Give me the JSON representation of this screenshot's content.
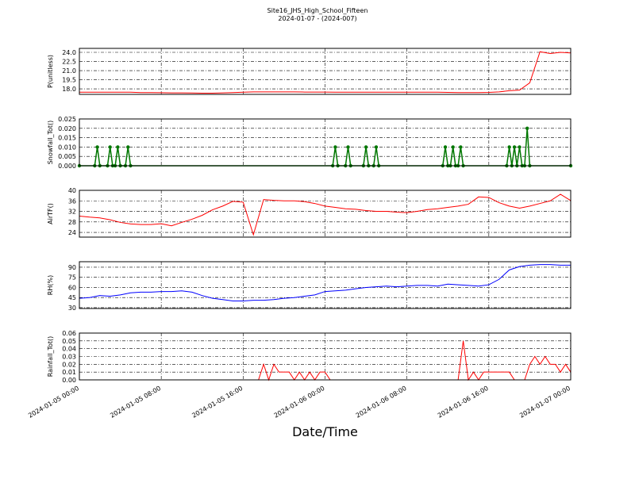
{
  "title": "Site16_JHS_High_School_Fifteen",
  "subtitle": "2024-01-07 - (2024-007)",
  "chart_data": [
    {
      "type": "line",
      "ylabel": "P(unitless)",
      "color": "#ff0000",
      "grid": true,
      "xlim": [
        "2024-01-05 00:00",
        "2024-01-07 00:00"
      ],
      "xticks": [
        "2024-01-05 00:00",
        "2024-01-05 08:00",
        "2024-01-05 16:00",
        "2024-01-06 00:00",
        "2024-01-06 08:00",
        "2024-01-06 16:00",
        "2024-01-07 00:00"
      ],
      "ylim": [
        17.1,
        24.65
      ],
      "yticks": [
        {
          "value": 18,
          "label": "18.0"
        },
        19.5,
        {
          "value": 21,
          "label": "21.0"
        },
        22.5,
        {
          "value": 24,
          "label": "24.0"
        }
      ],
      "x": [
        "2024-01-05 00:00",
        "2024-01-05 01:00",
        "2024-01-05 02:00",
        "2024-01-05 03:00",
        "2024-01-05 04:00",
        "2024-01-05 05:00",
        "2024-01-05 06:00",
        "2024-01-05 07:00",
        "2024-01-05 08:00",
        "2024-01-05 09:00",
        "2024-01-05 10:00",
        "2024-01-05 11:00",
        "2024-01-05 12:00",
        "2024-01-05 13:00",
        "2024-01-05 14:00",
        "2024-01-05 15:00",
        "2024-01-05 16:00",
        "2024-01-05 17:00",
        "2024-01-05 18:00",
        "2024-01-05 19:00",
        "2024-01-05 20:00",
        "2024-01-05 21:00",
        "2024-01-05 22:00",
        "2024-01-05 23:00",
        "2024-01-06 00:00",
        "2024-01-06 01:00",
        "2024-01-06 02:00",
        "2024-01-06 03:00",
        "2024-01-06 04:00",
        "2024-01-06 05:00",
        "2024-01-06 06:00",
        "2024-01-06 07:00",
        "2024-01-06 08:00",
        "2024-01-06 09:00",
        "2024-01-06 10:00",
        "2024-01-06 11:00",
        "2024-01-06 12:00",
        "2024-01-06 13:00",
        "2024-01-06 14:00",
        "2024-01-06 15:00",
        "2024-01-06 16:00",
        "2024-01-06 17:00",
        "2024-01-06 18:00",
        "2024-01-06 19:00",
        "2024-01-06 20:00",
        "2024-01-06 21:00",
        "2024-01-06 22:00",
        "2024-01-06 23:00",
        "2024-01-07 00:00"
      ],
      "values": [
        17.45,
        17.45,
        17.45,
        17.45,
        17.45,
        17.45,
        17.4,
        17.4,
        17.38,
        17.35,
        17.35,
        17.32,
        17.3,
        17.3,
        17.35,
        17.4,
        17.45,
        17.5,
        17.5,
        17.5,
        17.5,
        17.5,
        17.48,
        17.48,
        17.48,
        17.45,
        17.45,
        17.45,
        17.45,
        17.45,
        17.45,
        17.45,
        17.45,
        17.45,
        17.45,
        17.45,
        17.42,
        17.4,
        17.4,
        17.4,
        17.42,
        17.5,
        17.7,
        17.8,
        19.0,
        24.1,
        23.8,
        24.0,
        23.9
      ]
    },
    {
      "type": "line",
      "ylabel": "Snowfall_Tot()",
      "color": "#007700",
      "markers": true,
      "grid": true,
      "xlim": [
        "2024-01-05 00:00",
        "2024-01-07 00:00"
      ],
      "xticks": [
        "2024-01-05 00:00",
        "2024-01-05 08:00",
        "2024-01-05 16:00",
        "2024-01-06 00:00",
        "2024-01-06 08:00",
        "2024-01-06 16:00",
        "2024-01-07 00:00"
      ],
      "ylim": [
        0,
        0.025
      ],
      "yticks": [
        {
          "value": 0,
          "label": "0.000"
        },
        {
          "value": 0.005,
          "label": "0.005"
        },
        {
          "value": 0.01,
          "label": "0.010"
        },
        {
          "value": 0.015,
          "label": "0.015"
        },
        {
          "value": 0.02,
          "label": "0.020"
        },
        {
          "value": 0.025,
          "label": "0.025"
        }
      ],
      "x": [
        "2024-01-05 00:00",
        "2024-01-05 01:30",
        "2024-01-05 01:45",
        "2024-01-05 02:00",
        "2024-01-05 02:45",
        "2024-01-05 03:00",
        "2024-01-05 03:15",
        "2024-01-05 03:30",
        "2024-01-05 03:45",
        "2024-01-05 04:00",
        "2024-01-05 04:30",
        "2024-01-05 04:45",
        "2024-01-05 05:00",
        "2024-01-06 00:45",
        "2024-01-06 01:00",
        "2024-01-06 01:15",
        "2024-01-06 02:00",
        "2024-01-06 02:15",
        "2024-01-06 02:30",
        "2024-01-06 03:45",
        "2024-01-06 04:00",
        "2024-01-06 04:15",
        "2024-01-06 04:45",
        "2024-01-06 05:00",
        "2024-01-06 05:15",
        "2024-01-06 11:30",
        "2024-01-06 11:45",
        "2024-01-06 12:00",
        "2024-01-06 12:15",
        "2024-01-06 12:30",
        "2024-01-06 12:45",
        "2024-01-06 13:00",
        "2024-01-06 13:15",
        "2024-01-06 13:30",
        "2024-01-06 17:45",
        "2024-01-06 18:00",
        "2024-01-06 18:15",
        "2024-01-06 18:30",
        "2024-01-06 18:45",
        "2024-01-06 19:00",
        "2024-01-06 19:15",
        "2024-01-06 19:30",
        "2024-01-06 19:45",
        "2024-01-06 20:00",
        "2024-01-07 00:00"
      ],
      "values": [
        0,
        0,
        0.01,
        0,
        0,
        0.01,
        0,
        0,
        0.01,
        0,
        0,
        0.01,
        0,
        0,
        0.01,
        0,
        0,
        0.01,
        0,
        0,
        0.01,
        0,
        0,
        0.01,
        0,
        0,
        0.01,
        0,
        0,
        0.01,
        0,
        0,
        0.01,
        0,
        0,
        0.01,
        0,
        0.01,
        0,
        0.01,
        0,
        0,
        0.02,
        0,
        0
      ]
    },
    {
      "type": "line",
      "ylabel": "AirTF()",
      "color": "#ff0000",
      "grid": true,
      "xlim": [
        "2024-01-05 00:00",
        "2024-01-07 00:00"
      ],
      "xticks": [
        "2024-01-05 00:00",
        "2024-01-05 08:00",
        "2024-01-05 16:00",
        "2024-01-06 00:00",
        "2024-01-06 08:00",
        "2024-01-06 16:00",
        "2024-01-07 00:00"
      ],
      "ylim": [
        22.2,
        40
      ],
      "yticks": [
        24,
        28,
        32,
        36,
        40
      ],
      "x": [
        "2024-01-05 00:00",
        "2024-01-05 01:00",
        "2024-01-05 02:00",
        "2024-01-05 03:00",
        "2024-01-05 04:00",
        "2024-01-05 05:00",
        "2024-01-05 06:00",
        "2024-01-05 07:00",
        "2024-01-05 08:00",
        "2024-01-05 09:00",
        "2024-01-05 10:00",
        "2024-01-05 11:00",
        "2024-01-05 12:00",
        "2024-01-05 13:00",
        "2024-01-05 14:00",
        "2024-01-05 15:00",
        "2024-01-05 16:00",
        "2024-01-05 17:00",
        "2024-01-05 18:00",
        "2024-01-05 19:00",
        "2024-01-05 20:00",
        "2024-01-05 21:00",
        "2024-01-05 22:00",
        "2024-01-05 23:00",
        "2024-01-06 00:00",
        "2024-01-06 01:00",
        "2024-01-06 02:00",
        "2024-01-06 03:00",
        "2024-01-06 04:00",
        "2024-01-06 05:00",
        "2024-01-06 06:00",
        "2024-01-06 07:00",
        "2024-01-06 08:00",
        "2024-01-06 09:00",
        "2024-01-06 10:00",
        "2024-01-06 11:00",
        "2024-01-06 12:00",
        "2024-01-06 13:00",
        "2024-01-06 14:00",
        "2024-01-06 15:00",
        "2024-01-06 16:00",
        "2024-01-06 17:00",
        "2024-01-06 18:00",
        "2024-01-06 19:00",
        "2024-01-06 20:00",
        "2024-01-06 21:00",
        "2024-01-06 22:00",
        "2024-01-06 23:00",
        "2024-01-07 00:00"
      ],
      "values": [
        30.2,
        29.8,
        29.5,
        28.8,
        27.8,
        27.2,
        27.0,
        27.0,
        27.3,
        26.5,
        27.8,
        29.0,
        30.5,
        32.6,
        34.0,
        35.8,
        35.5,
        23.1,
        36.5,
        36.2,
        36.0,
        36.0,
        35.7,
        35.0,
        34.0,
        33.5,
        33.0,
        32.8,
        32.3,
        32.0,
        32.0,
        31.7,
        31.5,
        32.0,
        32.7,
        33.0,
        33.5,
        34.0,
        34.7,
        37.5,
        37.3,
        35.3,
        34.0,
        33.2,
        34.0,
        35.0,
        36.0,
        38.5,
        36.1
      ]
    },
    {
      "type": "line",
      "ylabel": "RH(%)",
      "color": "#0000ff",
      "grid": true,
      "xlim": [
        "2024-01-05 00:00",
        "2024-01-07 00:00"
      ],
      "xticks": [
        "2024-01-05 00:00",
        "2024-01-05 08:00",
        "2024-01-05 16:00",
        "2024-01-06 00:00",
        "2024-01-06 08:00",
        "2024-01-06 16:00",
        "2024-01-07 00:00"
      ],
      "ylim": [
        28.8,
        98.2
      ],
      "yticks": [
        30,
        45,
        60,
        75,
        90
      ],
      "x": [
        "2024-01-05 00:00",
        "2024-01-05 01:00",
        "2024-01-05 02:00",
        "2024-01-05 03:00",
        "2024-01-05 04:00",
        "2024-01-05 05:00",
        "2024-01-05 06:00",
        "2024-01-05 07:00",
        "2024-01-05 08:00",
        "2024-01-05 09:00",
        "2024-01-05 10:00",
        "2024-01-05 11:00",
        "2024-01-05 12:00",
        "2024-01-05 13:00",
        "2024-01-05 14:00",
        "2024-01-05 15:00",
        "2024-01-05 16:00",
        "2024-01-05 17:00",
        "2024-01-05 18:00",
        "2024-01-05 19:00",
        "2024-01-05 20:00",
        "2024-01-05 21:00",
        "2024-01-05 22:00",
        "2024-01-05 23:00",
        "2024-01-06 00:00",
        "2024-01-06 01:00",
        "2024-01-06 02:00",
        "2024-01-06 03:00",
        "2024-01-06 04:00",
        "2024-01-06 05:00",
        "2024-01-06 06:00",
        "2024-01-06 07:00",
        "2024-01-06 08:00",
        "2024-01-06 09:00",
        "2024-01-06 10:00",
        "2024-01-06 11:00",
        "2024-01-06 12:00",
        "2024-01-06 13:00",
        "2024-01-06 14:00",
        "2024-01-06 15:00",
        "2024-01-06 16:00",
        "2024-01-06 17:00",
        "2024-01-06 18:00",
        "2024-01-06 19:00",
        "2024-01-06 20:00",
        "2024-01-06 21:00",
        "2024-01-06 22:00",
        "2024-01-06 23:00",
        "2024-01-07 00:00"
      ],
      "values": [
        44,
        45,
        48,
        47,
        49,
        52,
        53,
        53,
        54,
        54,
        55,
        53,
        48,
        44,
        42,
        40,
        40,
        41,
        41,
        42,
        44,
        45,
        47,
        49,
        54,
        55,
        56,
        58,
        60,
        61,
        62,
        61,
        62,
        63,
        63,
        62,
        65,
        64,
        63,
        62,
        64,
        72,
        86,
        91,
        93,
        94,
        94,
        93,
        93
      ]
    },
    {
      "type": "line",
      "ylabel": "Rainfall_Tot()",
      "xlabel": "Date/Time",
      "color": "#ff0000",
      "grid": true,
      "xlim": [
        "2024-01-05 00:00",
        "2024-01-07 00:00"
      ],
      "xticks": [
        "2024-01-05 00:00",
        "2024-01-05 08:00",
        "2024-01-05 16:00",
        "2024-01-06 00:00",
        "2024-01-06 08:00",
        "2024-01-06 16:00",
        "2024-01-07 00:00"
      ],
      "ylim": [
        0,
        0.06
      ],
      "yticks": [
        {
          "value": 0,
          "label": "0.00"
        },
        0.01,
        0.02,
        0.03,
        0.04,
        0.05,
        0.06
      ],
      "x": [
        "2024-01-05 00:00",
        "2024-01-05 17:30",
        "2024-01-05 18:00",
        "2024-01-05 18:30",
        "2024-01-05 19:00",
        "2024-01-05 19:30",
        "2024-01-05 20:00",
        "2024-01-05 20:30",
        "2024-01-05 21:00",
        "2024-01-05 21:30",
        "2024-01-05 22:00",
        "2024-01-05 22:30",
        "2024-01-05 23:00",
        "2024-01-05 23:30",
        "2024-01-06 00:00",
        "2024-01-06 00:30",
        "2024-01-06 13:00",
        "2024-01-06 13:30",
        "2024-01-06 14:00",
        "2024-01-06 14:30",
        "2024-01-06 15:00",
        "2024-01-06 15:30",
        "2024-01-06 16:00",
        "2024-01-06 16:30",
        "2024-01-06 17:00",
        "2024-01-06 17:30",
        "2024-01-06 18:00",
        "2024-01-06 18:30",
        "2024-01-06 19:00",
        "2024-01-06 19:30",
        "2024-01-06 20:00",
        "2024-01-06 20:30",
        "2024-01-06 21:00",
        "2024-01-06 21:30",
        "2024-01-06 22:00",
        "2024-01-06 22:30",
        "2024-01-06 23:00",
        "2024-01-06 23:30",
        "2024-01-07 00:00"
      ],
      "values": [
        0,
        0,
        0.02,
        0,
        0.02,
        0.01,
        0.01,
        0.01,
        0,
        0.01,
        0,
        0.01,
        0,
        0.01,
        0.01,
        0,
        0,
        0.05,
        0,
        0.01,
        0,
        0.01,
        0.01,
        0.01,
        0.01,
        0.01,
        0.01,
        0,
        0,
        0,
        0.02,
        0.03,
        0.02,
        0.03,
        0.02,
        0.02,
        0.01,
        0.02,
        0.01
      ]
    }
  ]
}
